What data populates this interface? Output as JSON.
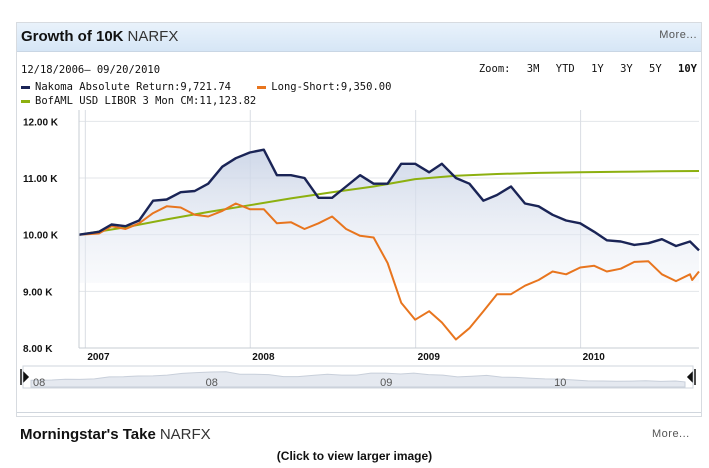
{
  "header": {
    "title": "Growth of 10K",
    "ticker": "NARFX",
    "more_label": "More..."
  },
  "date_range": "12/18/2006– 09/20/2010",
  "zoom": {
    "label": "Zoom:",
    "options": [
      "3M",
      "YTD",
      "1Y",
      "3Y",
      "5Y",
      "10Y"
    ],
    "selected": "10Y"
  },
  "legend": [
    {
      "text": "Nakoma Absolute Return:9,721.74",
      "color": "#1a2456"
    },
    {
      "text": "Long-Short:9,350.00",
      "color": "#e8751e"
    },
    {
      "text": "BofAML USD LIBOR 3 Mon CM:11,123.82",
      "color": "#8db010"
    }
  ],
  "chart_data": {
    "type": "line",
    "x_start": "2006-12-18",
    "x_end": "2010-09-20",
    "x_tick_labels": [
      "2007",
      "2008",
      "2009",
      "2010"
    ],
    "y_tick_labels": [
      "8.00 K",
      "9.00 K",
      "10.00 K",
      "11.00 K",
      "12.00 K"
    ],
    "ylim": [
      8000,
      12200
    ],
    "grid": true,
    "series": [
      {
        "name": "Nakoma Absolute Return",
        "color": "#1a2456",
        "points": [
          [
            "2006-12-18",
            10000
          ],
          [
            "2007-01-31",
            10050
          ],
          [
            "2007-02-28",
            10180
          ],
          [
            "2007-03-31",
            10150
          ],
          [
            "2007-04-30",
            10250
          ],
          [
            "2007-05-31",
            10600
          ],
          [
            "2007-06-30",
            10620
          ],
          [
            "2007-07-31",
            10750
          ],
          [
            "2007-08-31",
            10770
          ],
          [
            "2007-09-30",
            10900
          ],
          [
            "2007-10-31",
            11200
          ],
          [
            "2007-11-30",
            11350
          ],
          [
            "2007-12-31",
            11450
          ],
          [
            "2008-01-31",
            11500
          ],
          [
            "2008-02-29",
            11050
          ],
          [
            "2008-03-31",
            11050
          ],
          [
            "2008-04-30",
            11000
          ],
          [
            "2008-05-31",
            10650
          ],
          [
            "2008-06-30",
            10650
          ],
          [
            "2008-07-31",
            10850
          ],
          [
            "2008-08-31",
            11050
          ],
          [
            "2008-09-30",
            10900
          ],
          [
            "2008-10-31",
            10900
          ],
          [
            "2008-11-30",
            11250
          ],
          [
            "2008-12-31",
            11250
          ],
          [
            "2009-01-31",
            11100
          ],
          [
            "2009-02-28",
            11250
          ],
          [
            "2009-03-31",
            11000
          ],
          [
            "2009-04-30",
            10900
          ],
          [
            "2009-05-31",
            10600
          ],
          [
            "2009-06-30",
            10700
          ],
          [
            "2009-07-31",
            10850
          ],
          [
            "2009-08-31",
            10550
          ],
          [
            "2009-09-30",
            10500
          ],
          [
            "2009-10-31",
            10350
          ],
          [
            "2009-11-30",
            10250
          ],
          [
            "2009-12-31",
            10200
          ],
          [
            "2010-01-31",
            10050
          ],
          [
            "2010-02-28",
            9900
          ],
          [
            "2010-03-31",
            9880
          ],
          [
            "2010-04-30",
            9820
          ],
          [
            "2010-05-31",
            9850
          ],
          [
            "2010-06-30",
            9920
          ],
          [
            "2010-07-31",
            9800
          ],
          [
            "2010-08-31",
            9880
          ],
          [
            "2010-09-20",
            9721.74
          ]
        ]
      },
      {
        "name": "Long-Short",
        "color": "#e8751e",
        "points": [
          [
            "2006-12-18",
            10000
          ],
          [
            "2007-01-31",
            10020
          ],
          [
            "2007-02-28",
            10150
          ],
          [
            "2007-03-31",
            10100
          ],
          [
            "2007-04-30",
            10200
          ],
          [
            "2007-05-31",
            10380
          ],
          [
            "2007-06-30",
            10500
          ],
          [
            "2007-07-31",
            10480
          ],
          [
            "2007-08-31",
            10350
          ],
          [
            "2007-09-30",
            10320
          ],
          [
            "2007-10-31",
            10420
          ],
          [
            "2007-11-30",
            10550
          ],
          [
            "2007-12-31",
            10450
          ],
          [
            "2008-01-31",
            10450
          ],
          [
            "2008-02-29",
            10200
          ],
          [
            "2008-03-31",
            10220
          ],
          [
            "2008-04-30",
            10100
          ],
          [
            "2008-05-31",
            10200
          ],
          [
            "2008-06-30",
            10320
          ],
          [
            "2008-07-31",
            10100
          ],
          [
            "2008-08-31",
            9980
          ],
          [
            "2008-09-30",
            9950
          ],
          [
            "2008-10-31",
            9500
          ],
          [
            "2008-11-30",
            8800
          ],
          [
            "2008-12-31",
            8500
          ],
          [
            "2009-01-31",
            8650
          ],
          [
            "2009-02-28",
            8450
          ],
          [
            "2009-03-31",
            8150
          ],
          [
            "2009-04-30",
            8350
          ],
          [
            "2009-05-31",
            8650
          ],
          [
            "2009-06-30",
            8950
          ],
          [
            "2009-07-31",
            8950
          ],
          [
            "2009-08-31",
            9100
          ],
          [
            "2009-09-30",
            9200
          ],
          [
            "2009-10-31",
            9350
          ],
          [
            "2009-11-30",
            9300
          ],
          [
            "2009-12-31",
            9420
          ],
          [
            "2010-01-31",
            9450
          ],
          [
            "2010-02-28",
            9350
          ],
          [
            "2010-03-31",
            9400
          ],
          [
            "2010-04-30",
            9520
          ],
          [
            "2010-05-31",
            9530
          ],
          [
            "2010-06-30",
            9300
          ],
          [
            "2010-07-31",
            9180
          ],
          [
            "2010-08-31",
            9300
          ],
          [
            "2010-09-05",
            9200
          ],
          [
            "2010-09-20",
            9350
          ]
        ]
      },
      {
        "name": "BofAML USD LIBOR 3 Mon CM",
        "color": "#8db010",
        "points": [
          [
            "2006-12-18",
            10000
          ],
          [
            "2007-03-31",
            10130
          ],
          [
            "2007-06-30",
            10270
          ],
          [
            "2007-09-30",
            10400
          ],
          [
            "2007-12-31",
            10520
          ],
          [
            "2008-03-31",
            10640
          ],
          [
            "2008-06-30",
            10750
          ],
          [
            "2008-09-30",
            10850
          ],
          [
            "2008-12-31",
            10980
          ],
          [
            "2009-03-31",
            11040
          ],
          [
            "2009-06-30",
            11070
          ],
          [
            "2009-09-30",
            11090
          ],
          [
            "2009-12-31",
            11100
          ],
          [
            "2010-03-31",
            11110
          ],
          [
            "2010-06-30",
            11118
          ],
          [
            "2010-09-20",
            11123.82
          ]
        ]
      }
    ]
  },
  "navigator": {
    "labels": [
      "08",
      "08",
      "09",
      "10"
    ]
  },
  "section": {
    "title": "Morningstar's Take",
    "ticker": "NARFX",
    "more_label": "More..."
  },
  "caption": "(Click to view larger image)"
}
